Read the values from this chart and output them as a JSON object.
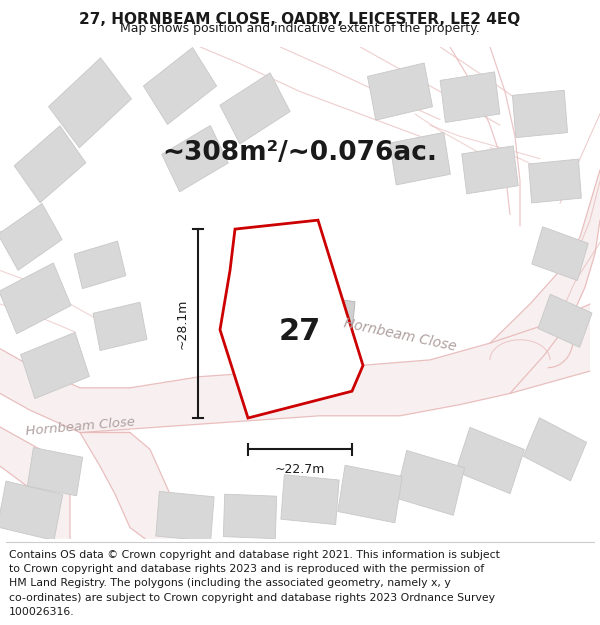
{
  "title": "27, HORNBEAM CLOSE, OADBY, LEICESTER, LE2 4EQ",
  "subtitle": "Map shows position and indicative extent of the property.",
  "area_text": "~308m²/~0.076ac.",
  "dim_height": "~28.1m",
  "dim_width": "~22.7m",
  "label_27": "27",
  "footer_lines": [
    "Contains OS data © Crown copyright and database right 2021. This information is subject",
    "to Crown copyright and database rights 2023 and is reproduced with the permission of",
    "HM Land Registry. The polygons (including the associated geometry, namely x, y",
    "co-ordinates) are subject to Crown copyright and database rights 2023 Ordnance Survey",
    "100026316."
  ],
  "bg_color": "#ffffff",
  "road_fill_color": "#f5f0f0",
  "road_line_color": "#e8b8b8",
  "building_color": "#d8d8d8",
  "building_edge_color": "#c8c8c8",
  "highlight_color": "#cc0000",
  "dim_color": "#1a1a1a",
  "text_color": "#1a1a1a",
  "footer_color": "#1a1a1a",
  "title_fontsize": 11,
  "subtitle_fontsize": 9,
  "area_fontsize": 19,
  "label_fontsize": 22,
  "road_label_fontsize": 10,
  "footer_fontsize": 7.8,
  "dim_fontsize": 9
}
